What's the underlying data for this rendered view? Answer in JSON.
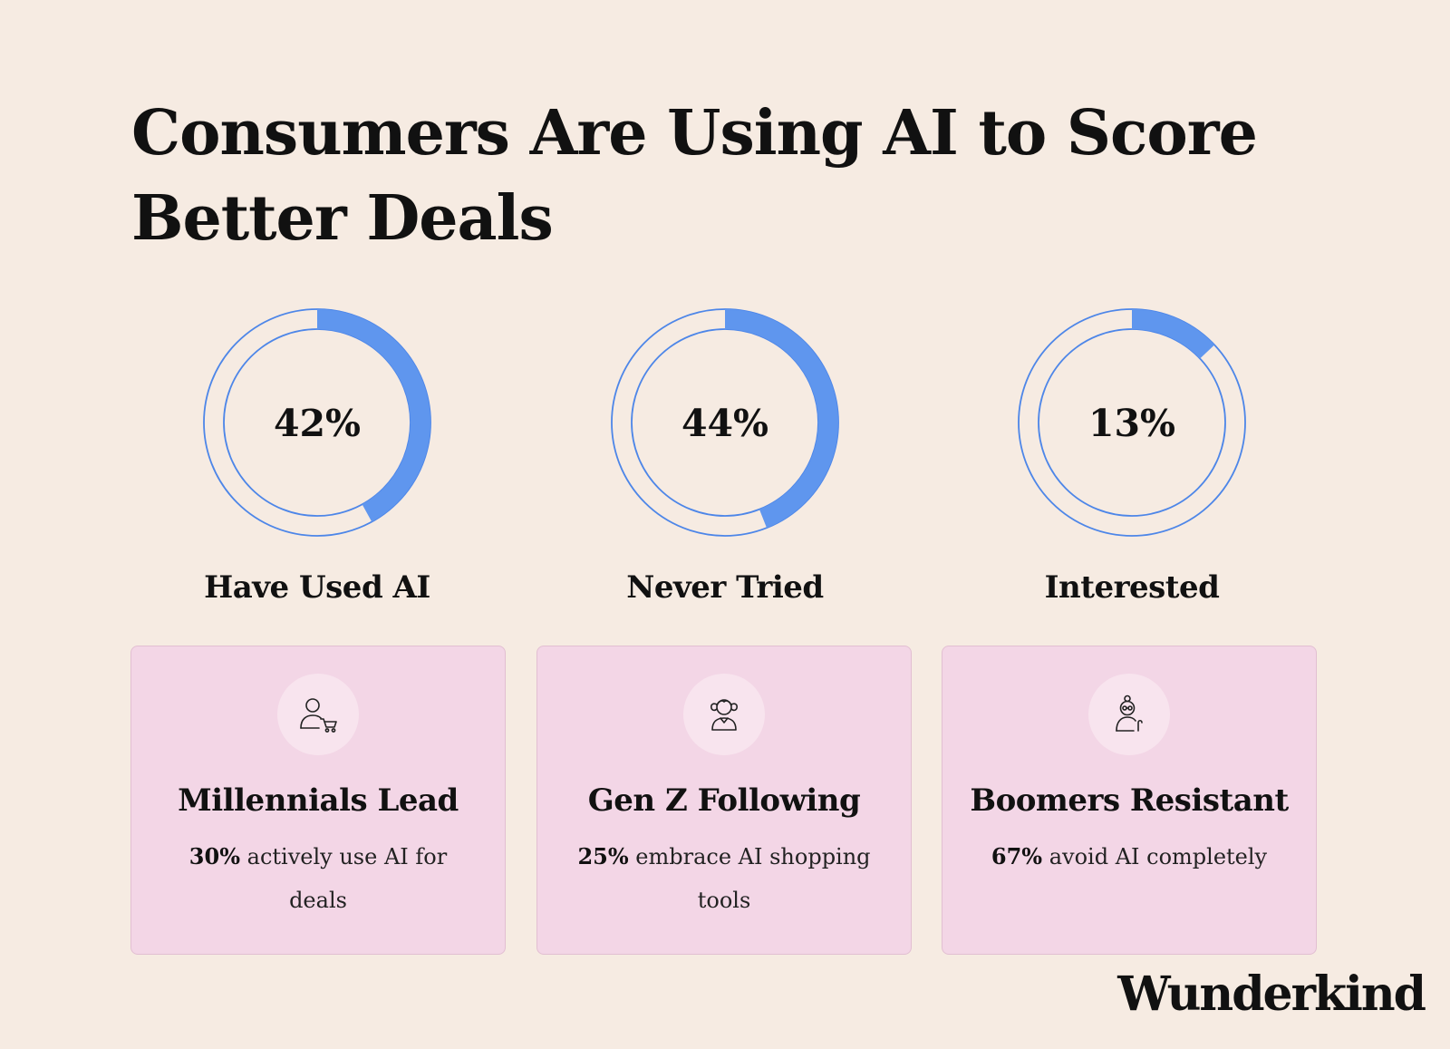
{
  "title": "Consumers Are Using AI to Score Better Deals",
  "colors": {
    "background": "#f6ebe2",
    "accent": "#5f96ee",
    "ring": "#4d86e8",
    "card_bg": "#f3d6e6",
    "icon_bg": "#f8e4ee"
  },
  "chart_data": {
    "type": "pie",
    "charts": [
      {
        "label": "Have Used AI",
        "value": 42,
        "display": "42%"
      },
      {
        "label": "Never Tried",
        "value": 44,
        "display": "44%"
      },
      {
        "label": "Interested",
        "value": 13,
        "display": "13%"
      }
    ]
  },
  "cards": [
    {
      "icon": "person-cart-icon",
      "title": "Millennials Lead",
      "highlight": "30%",
      "text": "actively use AI for deals"
    },
    {
      "icon": "girl-pigtails-icon",
      "title": "Gen Z Following",
      "highlight": "25%",
      "text": "embrace AI shopping tools"
    },
    {
      "icon": "elderly-person-cane-icon",
      "title": "Boomers Resistant",
      "highlight": "67%",
      "text": "avoid AI completely"
    }
  ],
  "brand": "Wunderkind"
}
